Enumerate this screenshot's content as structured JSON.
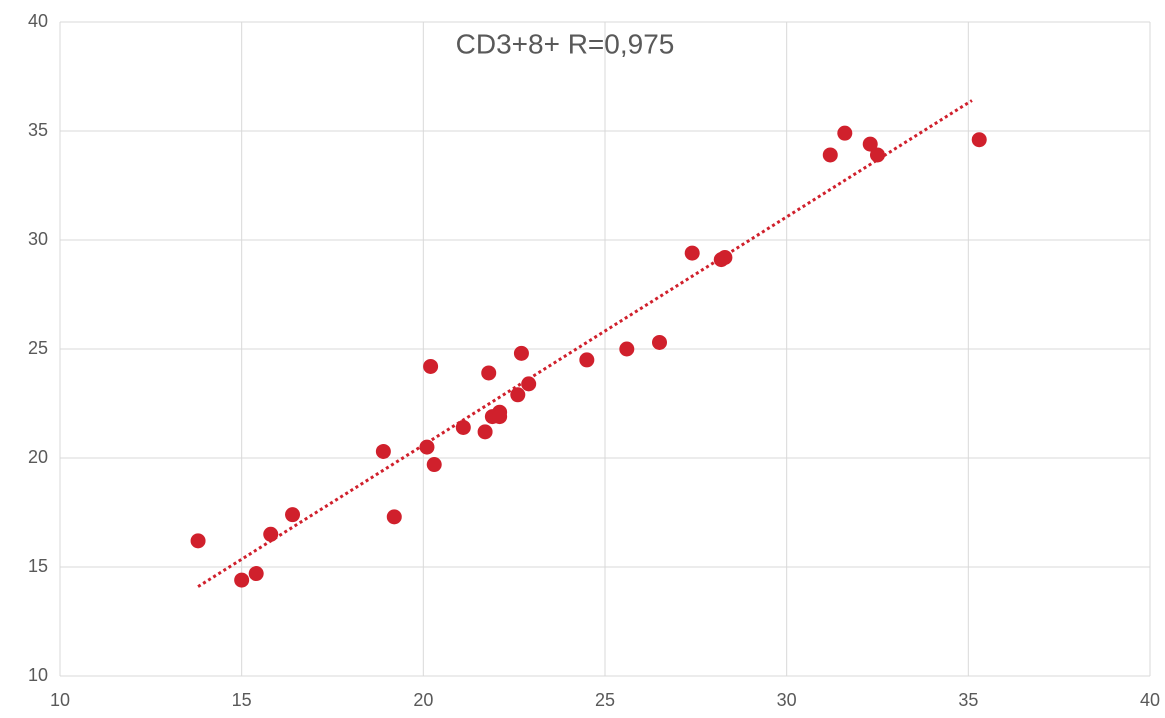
{
  "chart_data": {
    "type": "scatter",
    "title": "CD3+8+ R=0,975",
    "xlim": [
      10,
      40
    ],
    "xticks": [
      10,
      15,
      20,
      25,
      30,
      35,
      40
    ],
    "ylim": [
      10,
      40
    ],
    "yticks": [
      10,
      15,
      20,
      25,
      30,
      35,
      40
    ],
    "grid": true,
    "series": [
      {
        "color": "#d0202c",
        "x": [
          13.8,
          15.0,
          15.4,
          15.8,
          16.4,
          18.9,
          19.2,
          20.1,
          20.2,
          20.3,
          21.1,
          21.7,
          21.8,
          21.9,
          22.1,
          22.1,
          22.6,
          22.7,
          22.9,
          24.5,
          25.6,
          26.5,
          27.4,
          28.2,
          28.3,
          31.2,
          31.6,
          32.3,
          32.5,
          35.3
        ],
        "y": [
          16.2,
          14.4,
          14.7,
          16.5,
          17.4,
          20.3,
          17.3,
          20.5,
          24.2,
          19.7,
          21.4,
          21.2,
          23.9,
          21.9,
          22.1,
          21.9,
          22.9,
          24.8,
          23.4,
          24.5,
          25.0,
          25.3,
          29.4,
          29.1,
          29.2,
          33.9,
          34.9,
          34.4,
          33.9,
          34.6
        ]
      }
    ],
    "trendline": {
      "color": "#d0202c",
      "x": [
        13.8,
        35.1
      ],
      "y": [
        14.1,
        36.4
      ]
    }
  }
}
